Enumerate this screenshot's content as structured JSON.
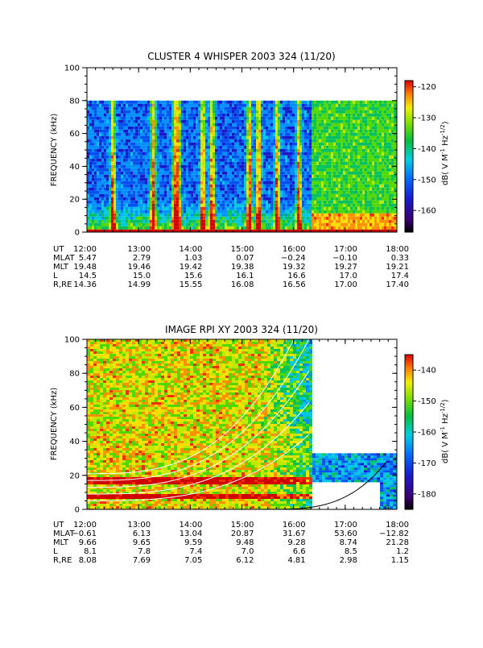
{
  "chart_data": [
    {
      "type": "heatmap",
      "title": "CLUSTER 4 WHISPER 2003 324 (11/20)",
      "ylabel": "FREQUENCY (kHz)",
      "ylim": [
        0,
        100
      ],
      "y_ticks": [
        "0",
        "20",
        "40",
        "60",
        "80",
        "100"
      ],
      "data_ceiling_khz": 80,
      "colorbar": {
        "label_base": "dB( V M",
        "label_exp1": "-1",
        "label_mid": " Hz",
        "label_exp2": "-1/2",
        "label_end": ")",
        "range": [
          -167,
          -118
        ],
        "ticks": [
          "-120",
          "-130",
          "-140",
          "-150",
          "-160"
        ],
        "tick_values": [
          -120,
          -130,
          -140,
          -150,
          -160
        ]
      },
      "x_ticks": [
        "12:00",
        "13:00",
        "14:00",
        "15:00",
        "16:00",
        "17:00",
        "18:00"
      ],
      "orbit_rows": [
        {
          "label": "UT",
          "values": [
            "12:00",
            "13:00",
            "14:00",
            "15:00",
            "16:00",
            "17:00",
            "18:00"
          ]
        },
        {
          "label": "MLAT",
          "values": [
            "5.47",
            "2.79",
            "1.03",
            "0.07",
            "−0.24",
            "−0.10",
            "0.33"
          ]
        },
        {
          "label": "MLT",
          "values": [
            "19.48",
            "19.46",
            "19.42",
            "19.38",
            "19.32",
            "19.27",
            "19.21"
          ]
        },
        {
          "label": "L",
          "values": [
            "14.5",
            "15.0",
            "15.6",
            "16.1",
            "16.6",
            "17.0",
            "17.4"
          ]
        },
        {
          "label": "R,RE",
          "values": [
            "14.36",
            "14.99",
            "15.55",
            "16.08",
            "16.56",
            "17.00",
            "17.40"
          ]
        }
      ]
    },
    {
      "type": "heatmap",
      "title": "IMAGE RPI XY 2003 324 (11/20)",
      "ylabel": "FREQUENCY (kHz)",
      "ylim": [
        0,
        100
      ],
      "y_ticks": [
        "0",
        "20",
        "40",
        "60",
        "80",
        "100"
      ],
      "colorbar": {
        "label_base": "dB( V M",
        "label_exp1": "-1",
        "label_mid": " Hz",
        "label_exp2": "-1/2",
        "label_end": ")",
        "range": [
          -185,
          -135
        ],
        "ticks": [
          "-140",
          "-150",
          "-160",
          "-170",
          "-180"
        ],
        "tick_values": [
          -140,
          -150,
          -160,
          -170,
          -180
        ]
      },
      "x_ticks": [
        "12:00",
        "13:00",
        "14:00",
        "15:00",
        "16:00",
        "17:00",
        "18:00"
      ],
      "orbit_rows": [
        {
          "label": "UT",
          "values": [
            "12:00",
            "13:00",
            "14:00",
            "15:00",
            "16:00",
            "17:00",
            "18:00"
          ]
        },
        {
          "label": "MLAT",
          "values": [
            "−0.61",
            "6.13",
            "13.04",
            "20.87",
            "31.67",
            "53.60",
            "−12.82"
          ]
        },
        {
          "label": "MLT",
          "values": [
            "9.66",
            "9.65",
            "9.59",
            "9.48",
            "9.28",
            "8.74",
            "21.28"
          ]
        },
        {
          "label": "L",
          "values": [
            "8.1",
            "7.8",
            "7.4",
            "7.0",
            "6.6",
            "8.5",
            "1.2"
          ]
        },
        {
          "label": "R,RE",
          "values": [
            "8.08",
            "7.69",
            "7.05",
            "6.12",
            "4.81",
            "2.98",
            "1.15"
          ]
        }
      ]
    }
  ]
}
